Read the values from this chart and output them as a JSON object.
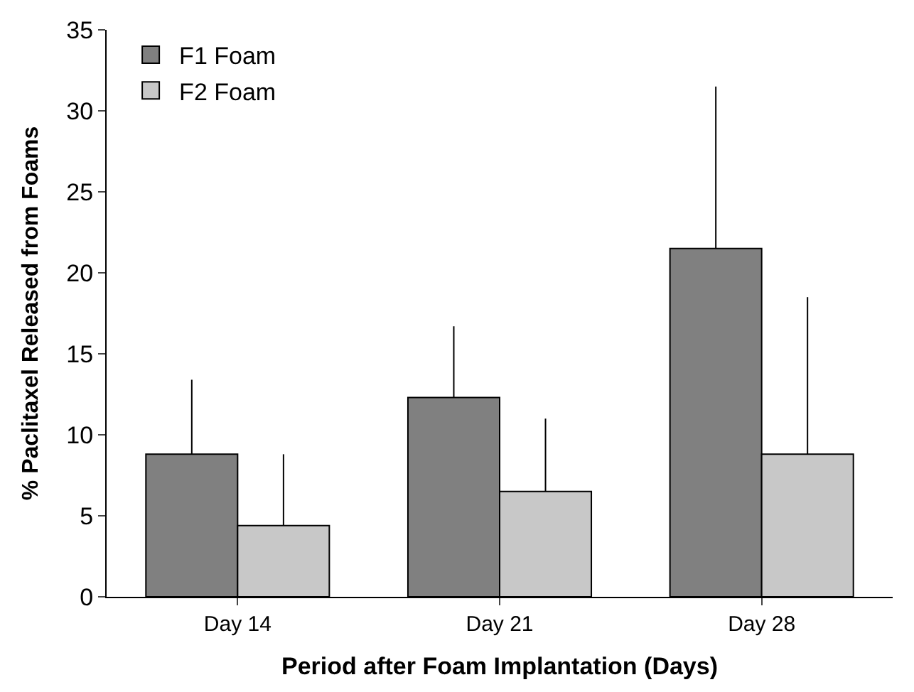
{
  "chart_data": {
    "type": "bar",
    "xlabel": "Period after Foam Implantation (Days)",
    "ylabel": "% Paclitaxel Released from Foams",
    "categories": [
      "Day 14",
      "Day 21",
      "Day 28"
    ],
    "series": [
      {
        "name": "F1 Foam",
        "color": "#808080",
        "values": [
          8.8,
          12.3,
          21.5
        ],
        "errors": [
          [
            8.8,
            13.4
          ],
          [
            12.3,
            16.7
          ],
          [
            21.5,
            31.5
          ]
        ]
      },
      {
        "name": "F2 Foam",
        "color": "#c8c8c8",
        "values": [
          4.4,
          6.5,
          8.8
        ],
        "errors": [
          [
            4.4,
            8.8
          ],
          [
            6.5,
            11.0
          ],
          [
            8.8,
            18.5
          ]
        ]
      }
    ],
    "ylim": [
      0,
      35
    ],
    "yticks": [
      0,
      5,
      10,
      15,
      20,
      25,
      30,
      35
    ],
    "legend": "top left"
  }
}
